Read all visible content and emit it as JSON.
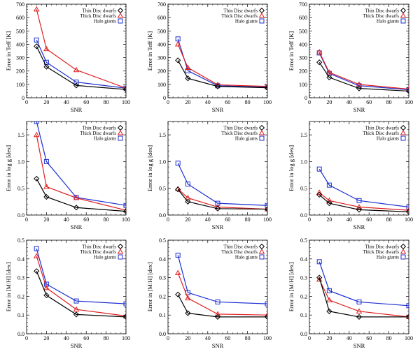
{
  "chart_data": [
    {
      "type": "line",
      "x": [
        10,
        20,
        50,
        100
      ],
      "xlim": [
        0,
        100
      ],
      "ylim": [
        0,
        700
      ],
      "xticks": [
        0,
        20,
        40,
        60,
        80,
        100
      ],
      "yticks": [
        0,
        100,
        200,
        300,
        400,
        500,
        600,
        700
      ],
      "xlabel": "SNR",
      "ylabel": "Error in Teff [K]",
      "series": [
        {
          "name": "Thin Disc dwarfs",
          "color": "#000000",
          "marker": "diamond",
          "values": [
            385,
            232,
            92,
            62
          ]
        },
        {
          "name": "Thick Disc dwarfs",
          "color": "#e02020",
          "marker": "triangle",
          "values": [
            662,
            365,
            208,
            72
          ]
        },
        {
          "name": "Halo giants",
          "color": "#1c2fd0",
          "marker": "square",
          "values": [
            432,
            265,
            117,
            72
          ]
        }
      ]
    },
    {
      "type": "line",
      "x": [
        10,
        20,
        50,
        100
      ],
      "xlim": [
        0,
        100
      ],
      "ylim": [
        0,
        700
      ],
      "xticks": [
        0,
        20,
        40,
        60,
        80,
        100
      ],
      "yticks": [
        0,
        100,
        200,
        300,
        400,
        500,
        600,
        700
      ],
      "xlabel": "SNR",
      "ylabel": "Error in Teff [K]",
      "series": [
        {
          "name": "Thin Disc dwarfs",
          "color": "#000000",
          "marker": "diamond",
          "values": [
            280,
            145,
            85,
            75
          ]
        },
        {
          "name": "Thick Disc dwarfs",
          "color": "#e02020",
          "marker": "triangle",
          "values": [
            400,
            225,
            97,
            85
          ]
        },
        {
          "name": "Halo giants",
          "color": "#1c2fd0",
          "marker": "square",
          "values": [
            440,
            202,
            90,
            80
          ]
        }
      ]
    },
    {
      "type": "line",
      "x": [
        10,
        20,
        50,
        100
      ],
      "xlim": [
        0,
        100
      ],
      "ylim": [
        0,
        700
      ],
      "xticks": [
        0,
        20,
        40,
        60,
        80,
        100
      ],
      "yticks": [
        0,
        100,
        200,
        300,
        400,
        500,
        600,
        700
      ],
      "xlabel": "SNR",
      "ylabel": "Error in Teff [K]",
      "series": [
        {
          "name": "Thin Disc dwarfs",
          "color": "#000000",
          "marker": "diamond",
          "values": [
            265,
            152,
            70,
            50
          ]
        },
        {
          "name": "Thick Disc dwarfs",
          "color": "#e02020",
          "marker": "triangle",
          "values": [
            342,
            190,
            100,
            65
          ]
        },
        {
          "name": "Halo giants",
          "color": "#1c2fd0",
          "marker": "square",
          "values": [
            335,
            182,
            90,
            60
          ]
        }
      ]
    },
    {
      "type": "line",
      "x": [
        10,
        20,
        50,
        100
      ],
      "xlim": [
        0,
        100
      ],
      "ylim": [
        0,
        1.75
      ],
      "xticks": [
        0,
        20,
        40,
        60,
        80,
        100
      ],
      "yticks": [
        0,
        0.5,
        1.0,
        1.5
      ],
      "ytick_labels": [
        "0.0",
        "0.5",
        "1.0",
        "1.5"
      ],
      "xlabel": "SNR",
      "ylabel": "Error in log g [dex]",
      "series": [
        {
          "name": "Thin Disc dwarfs",
          "color": "#000000",
          "marker": "diamond",
          "values": [
            0.68,
            0.34,
            0.14,
            0.07
          ]
        },
        {
          "name": "Thick Disc dwarfs",
          "color": "#e02020",
          "marker": "triangle",
          "values": [
            1.5,
            0.53,
            0.32,
            0.09
          ]
        },
        {
          "name": "Halo giants",
          "color": "#1c2fd0",
          "marker": "square",
          "values": [
            1.75,
            1.0,
            0.33,
            0.18
          ]
        }
      ]
    },
    {
      "type": "line",
      "x": [
        10,
        20,
        50,
        100
      ],
      "xlim": [
        0,
        100
      ],
      "ylim": [
        0,
        1.75
      ],
      "xticks": [
        0,
        20,
        40,
        60,
        80,
        100
      ],
      "yticks": [
        0,
        0.5,
        1.0,
        1.5
      ],
      "ytick_labels": [
        "0.0",
        "0.5",
        "1.0",
        "1.5"
      ],
      "xlabel": "SNR",
      "ylabel": "Error in log g [dex]",
      "series": [
        {
          "name": "Thin Disc dwarfs",
          "color": "#000000",
          "marker": "diamond",
          "values": [
            0.48,
            0.25,
            0.12,
            0.11
          ]
        },
        {
          "name": "Thick Disc dwarfs",
          "color": "#e02020",
          "marker": "triangle",
          "values": [
            0.49,
            0.32,
            0.15,
            0.11
          ]
        },
        {
          "name": "Halo giants",
          "color": "#1c2fd0",
          "marker": "square",
          "values": [
            0.97,
            0.58,
            0.22,
            0.18
          ]
        }
      ]
    },
    {
      "type": "line",
      "x": [
        10,
        20,
        50,
        100
      ],
      "xlim": [
        0,
        100
      ],
      "ylim": [
        0,
        1.75
      ],
      "xticks": [
        0,
        20,
        40,
        60,
        80,
        100
      ],
      "yticks": [
        0,
        0.5,
        1.0,
        1.5
      ],
      "ytick_labels": [
        "0.0",
        "0.5",
        "1.0",
        "1.5"
      ],
      "xlabel": "SNR",
      "ylabel": "Error in log g [dex]",
      "series": [
        {
          "name": "Thin Disc dwarfs",
          "color": "#000000",
          "marker": "diamond",
          "values": [
            0.38,
            0.22,
            0.1,
            0.06
          ]
        },
        {
          "name": "Thick Disc dwarfs",
          "color": "#e02020",
          "marker": "triangle",
          "values": [
            0.42,
            0.27,
            0.15,
            0.09
          ]
        },
        {
          "name": "Halo giants",
          "color": "#1c2fd0",
          "marker": "square",
          "values": [
            0.86,
            0.56,
            0.27,
            0.15
          ]
        }
      ]
    },
    {
      "type": "line",
      "x": [
        10,
        20,
        50,
        100
      ],
      "xlim": [
        0,
        100
      ],
      "ylim": [
        0,
        0.5
      ],
      "xticks": [
        0,
        20,
        40,
        60,
        80,
        100
      ],
      "yticks": [
        0,
        0.1,
        0.2,
        0.3,
        0.4,
        0.5
      ],
      "ytick_labels": [
        "0.0",
        "0.1",
        "0.2",
        "0.3",
        "0.4",
        "0.5"
      ],
      "xlabel": "SNR",
      "ylabel": "Error in [M/H] [dex]",
      "series": [
        {
          "name": "Thin Disc dwarfs",
          "color": "#000000",
          "marker": "diamond",
          "values": [
            0.335,
            0.205,
            0.103,
            0.09
          ]
        },
        {
          "name": "Thick Disc dwarfs",
          "color": "#e02020",
          "marker": "triangle",
          "values": [
            0.415,
            0.245,
            0.13,
            0.095
          ]
        },
        {
          "name": "Halo giants",
          "color": "#1c2fd0",
          "marker": "square",
          "values": [
            0.455,
            0.265,
            0.175,
            0.16
          ]
        }
      ]
    },
    {
      "type": "line",
      "x": [
        10,
        20,
        50,
        100
      ],
      "xlim": [
        0,
        100
      ],
      "ylim": [
        0,
        0.5
      ],
      "xticks": [
        0,
        20,
        40,
        60,
        80,
        100
      ],
      "yticks": [
        0,
        0.1,
        0.2,
        0.3,
        0.4,
        0.5
      ],
      "ytick_labels": [
        "0.0",
        "0.1",
        "0.2",
        "0.3",
        "0.4",
        "0.5"
      ],
      "xlabel": "SNR",
      "ylabel": "Error in [M/H] [dex]",
      "series": [
        {
          "name": "Thin Disc dwarfs",
          "color": "#000000",
          "marker": "diamond",
          "values": [
            0.21,
            0.11,
            0.09,
            0.09
          ]
        },
        {
          "name": "Thick Disc dwarfs",
          "color": "#e02020",
          "marker": "triangle",
          "values": [
            0.325,
            0.19,
            0.105,
            0.1
          ]
        },
        {
          "name": "Halo giants",
          "color": "#1c2fd0",
          "marker": "square",
          "values": [
            0.42,
            0.22,
            0.17,
            0.16
          ]
        }
      ]
    },
    {
      "type": "line",
      "x": [
        10,
        20,
        50,
        100
      ],
      "xlim": [
        0,
        100
      ],
      "ylim": [
        0,
        0.5
      ],
      "xticks": [
        0,
        20,
        40,
        60,
        80,
        100
      ],
      "yticks": [
        0,
        0.1,
        0.2,
        0.3,
        0.4,
        0.5
      ],
      "ytick_labels": [
        "0.0",
        "0.1",
        "0.2",
        "0.3",
        "0.4",
        "0.5"
      ],
      "xlabel": "SNR",
      "ylabel": "Error in [M/H] [dex]",
      "series": [
        {
          "name": "Thin Disc dwarfs",
          "color": "#000000",
          "marker": "diamond",
          "values": [
            0.3,
            0.12,
            0.09,
            0.09
          ]
        },
        {
          "name": "Thick Disc dwarfs",
          "color": "#e02020",
          "marker": "triangle",
          "values": [
            0.29,
            0.18,
            0.12,
            0.09
          ]
        },
        {
          "name": "Halo giants",
          "color": "#1c2fd0",
          "marker": "square",
          "values": [
            0.385,
            0.23,
            0.17,
            0.15
          ]
        }
      ]
    }
  ]
}
